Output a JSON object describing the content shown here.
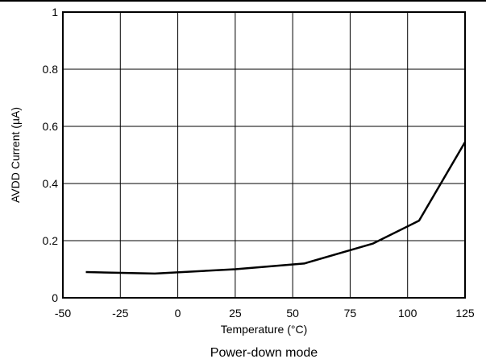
{
  "chart_data": {
    "type": "line",
    "title": "",
    "caption": "Power-down mode",
    "xlabel": "Temperature (°C)",
    "ylabel": "AVDD Current (µA)",
    "xlim": [
      -50,
      125
    ],
    "ylim": [
      0,
      1
    ],
    "xticks": [
      -50,
      -25,
      0,
      25,
      50,
      75,
      100,
      125
    ],
    "yticks": [
      0,
      0.2,
      0.4,
      0.6,
      0.8,
      1
    ],
    "ytick_labels": [
      "0",
      "0.2",
      "0.4",
      "0.6",
      "0.8",
      "1"
    ],
    "grid": true,
    "series": [
      {
        "color": "#000000",
        "x": [
          -40,
          -10,
          25,
          55,
          85,
          105,
          125
        ],
        "y": [
          0.09,
          0.085,
          0.1,
          0.12,
          0.19,
          0.27,
          0.545
        ]
      }
    ]
  }
}
